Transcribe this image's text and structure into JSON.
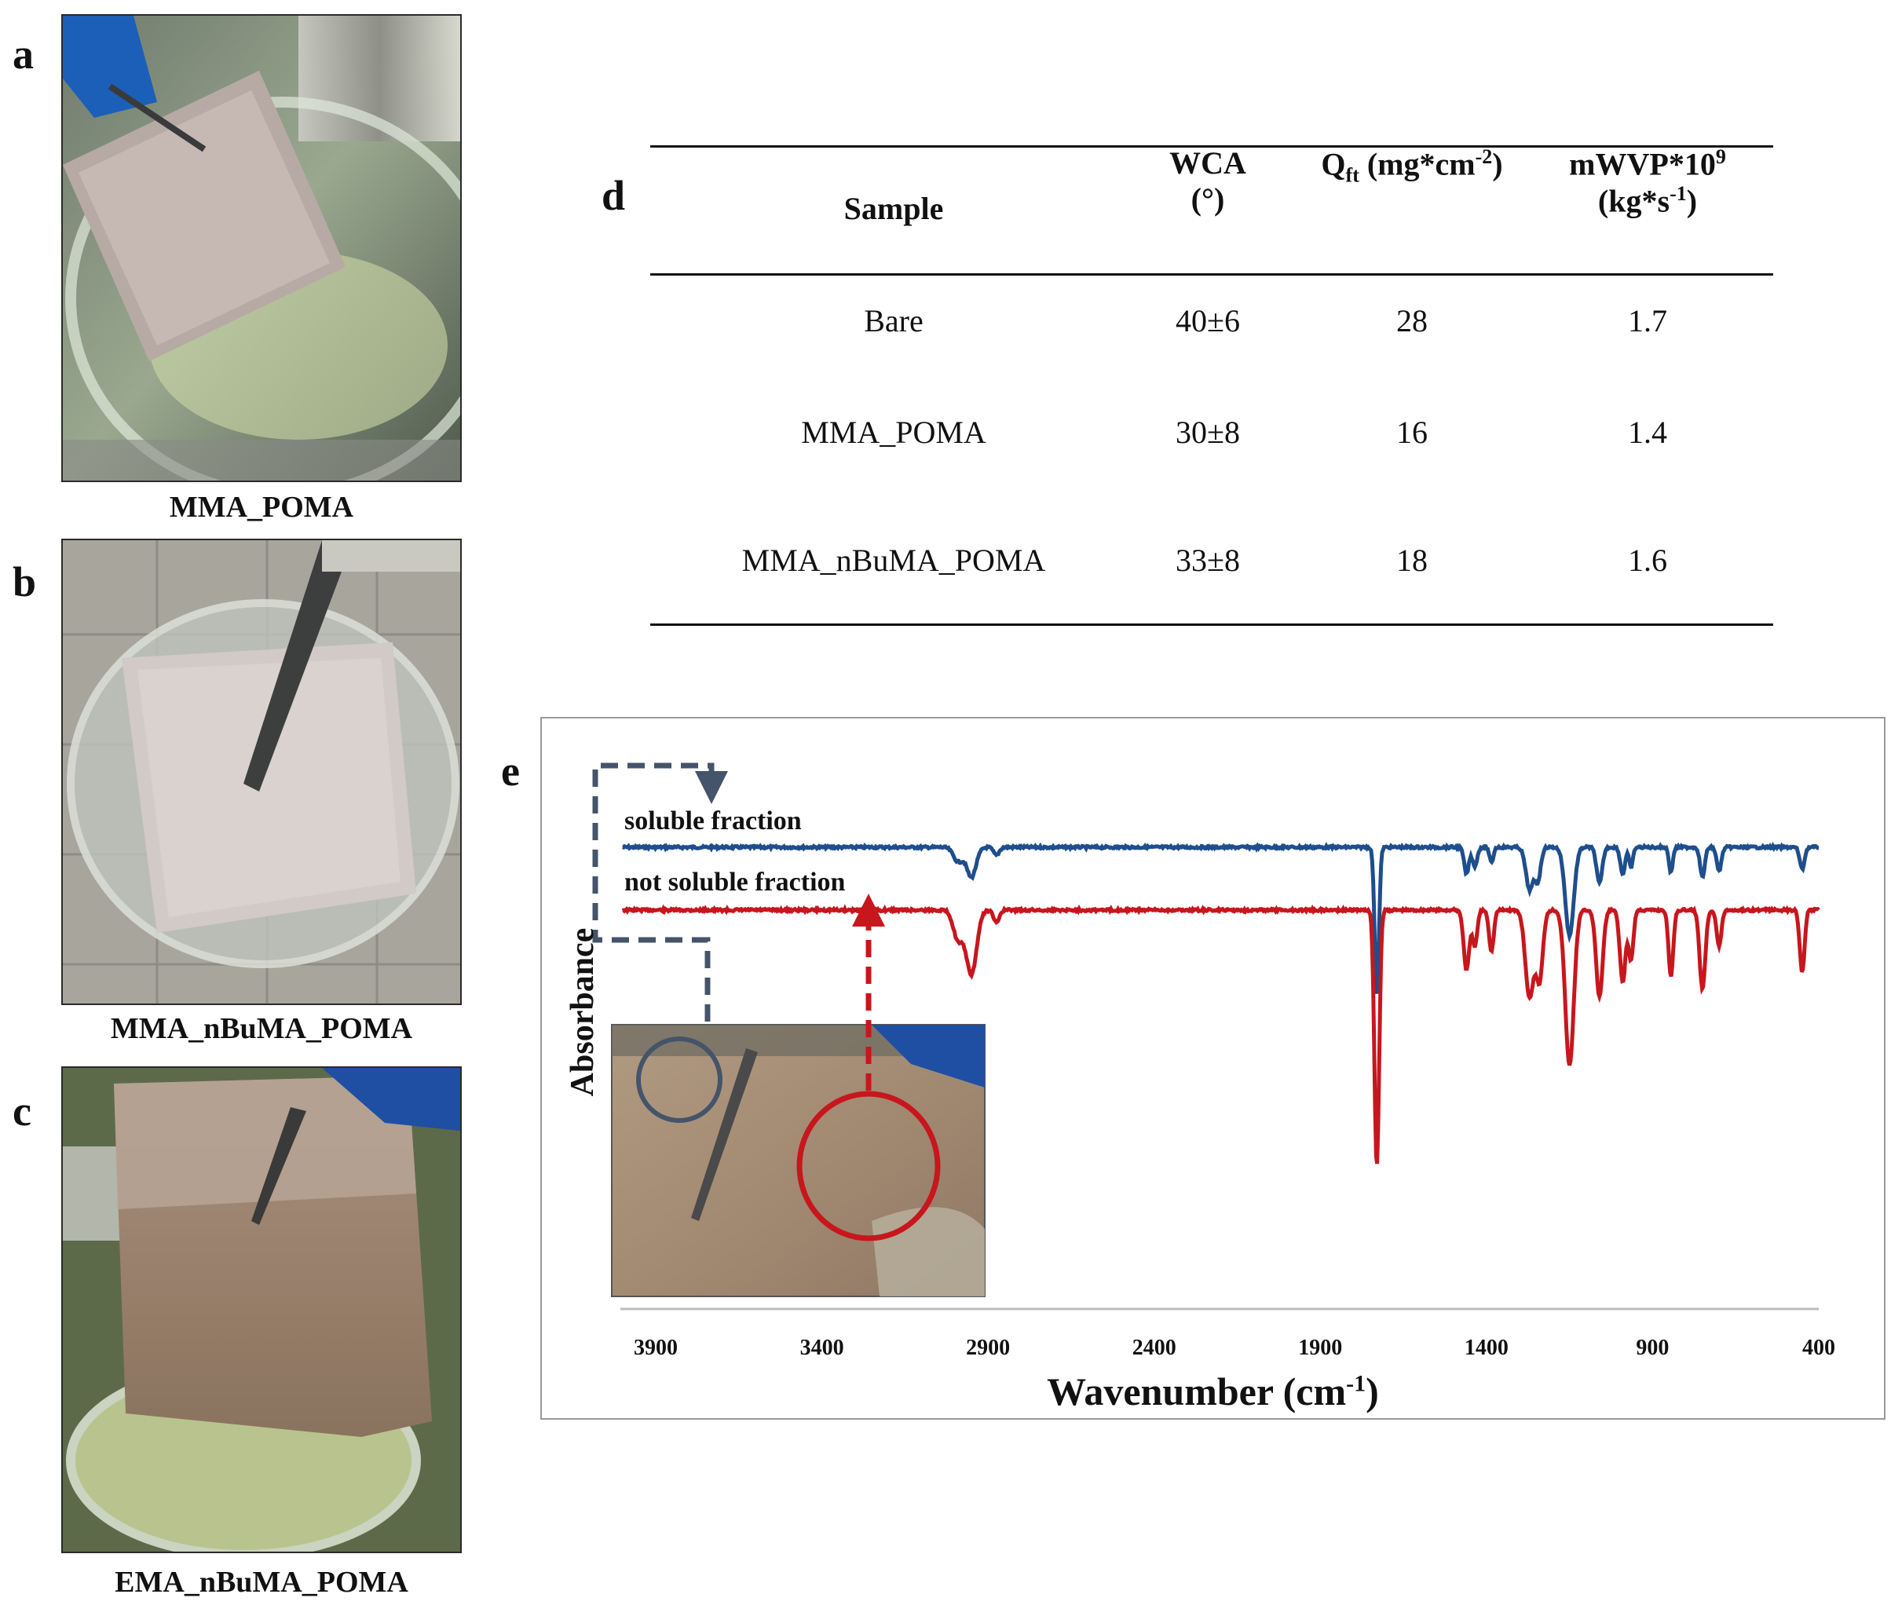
{
  "panels": {
    "a": {
      "letter": "a",
      "caption": "MMA_POMA"
    },
    "b": {
      "letter": "b",
      "caption": "MMA_nBuMA_POMA"
    },
    "c": {
      "letter": "c",
      "caption": "EMA_nBuMA_POMA"
    },
    "d": {
      "letter": "d"
    },
    "e": {
      "letter": "e"
    }
  },
  "table": {
    "headers": {
      "sample": "Sample",
      "wca_line1": "WCA",
      "wca_line2": "(°)",
      "qft_main": "Q",
      "qft_sub": "ft",
      "qft_rest": " (mg*cm",
      "qft_sup": "-2",
      "qft_close": ")",
      "mwvp_line1": "mWVP*10",
      "mwvp_sup": "9",
      "mwvp_line2a": "(kg*s",
      "mwvp_line2sup": "-1",
      "mwvp_line2b": ")"
    },
    "rows": [
      {
        "sample": "Bare",
        "wca": "40±6",
        "qft": "28",
        "mwvp": "1.7"
      },
      {
        "sample": "MMA_POMA",
        "wca": "30±8",
        "qft": "16",
        "mwvp": "1.4"
      },
      {
        "sample": "MMA_nBuMA_POMA",
        "wca": "33±8",
        "qft": "18",
        "mwvp": "1.6"
      }
    ]
  },
  "chart_data": {
    "type": "line",
    "xlabel": "Wavenumber (cm-1)",
    "xlabel_main": "Wavenumber (cm",
    "xlabel_sup": "-1",
    "xlabel_close": ")",
    "ylabel": "Absorbance",
    "x_ticks": [
      3900,
      3400,
      2900,
      2400,
      1900,
      1400,
      900,
      400
    ],
    "xlim": [
      4000,
      400
    ],
    "x_reversed": true,
    "y_ticks_shown": false,
    "series": [
      {
        "name": "soluble fraction",
        "color": "#1f4e8c"
      },
      {
        "name": "not soluble fraction",
        "color": "#c8161d"
      }
    ],
    "inset_arrows": {
      "soluble_color": "#44546a",
      "not_soluble_color": "#c8161d"
    }
  }
}
